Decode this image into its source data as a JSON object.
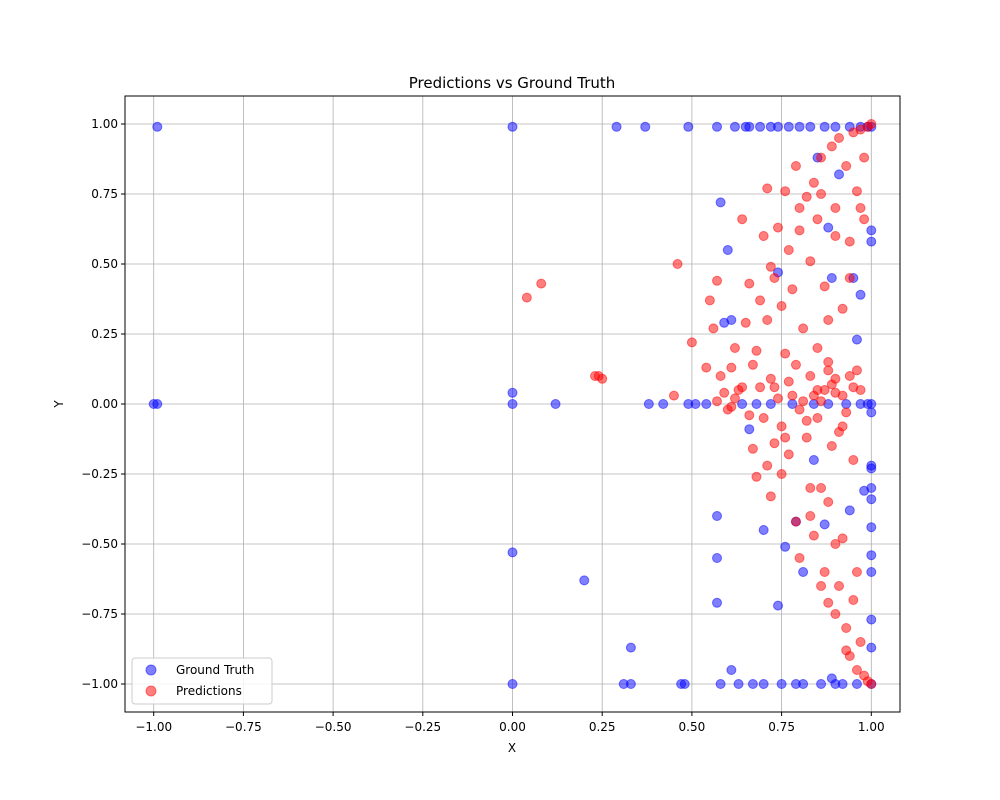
{
  "chart_data": {
    "type": "scatter",
    "title": "Predictions vs Ground Truth",
    "xlabel": "X",
    "ylabel": "Y",
    "xlim": [
      -1.08,
      1.08
    ],
    "ylim": [
      -1.1,
      1.1
    ],
    "xticks": [
      -1.0,
      -0.75,
      -0.5,
      -0.25,
      0.0,
      0.25,
      0.5,
      0.75,
      1.0
    ],
    "xtick_labels": [
      "−1.00",
      "−0.75",
      "−0.50",
      "−0.25",
      "0.00",
      "0.25",
      "0.50",
      "0.75",
      "1.00"
    ],
    "yticks": [
      -1.0,
      -0.75,
      -0.5,
      -0.25,
      0.0,
      0.25,
      0.5,
      0.75,
      1.0
    ],
    "ytick_labels": [
      "−1.00",
      "−0.75",
      "−0.50",
      "−0.25",
      "0.00",
      "0.25",
      "0.50",
      "0.75",
      "1.00"
    ],
    "grid": true,
    "legend_position": "lower-left",
    "series": [
      {
        "name": "Ground Truth",
        "color": "#0000ff",
        "points": [
          [
            -0.99,
            0.99
          ],
          [
            -1.0,
            0.0
          ],
          [
            -0.99,
            0.0
          ],
          [
            0.0,
            0.99
          ],
          [
            0.0,
            0.04
          ],
          [
            0.0,
            0.0
          ],
          [
            0.0,
            -0.53
          ],
          [
            0.0,
            -1.0
          ],
          [
            0.12,
            0.0
          ],
          [
            0.2,
            -0.63
          ],
          [
            0.29,
            0.99
          ],
          [
            0.31,
            -1.0
          ],
          [
            0.33,
            -0.87
          ],
          [
            0.33,
            -1.0
          ],
          [
            0.37,
            0.99
          ],
          [
            0.38,
            0.0
          ],
          [
            0.42,
            0.0
          ],
          [
            0.47,
            -1.0
          ],
          [
            0.48,
            -1.0
          ],
          [
            0.49,
            0.99
          ],
          [
            0.49,
            0.0
          ],
          [
            0.51,
            0.0
          ],
          [
            0.54,
            0.0
          ],
          [
            0.57,
            -0.4
          ],
          [
            0.57,
            -0.55
          ],
          [
            0.57,
            -0.71
          ],
          [
            0.57,
            0.99
          ],
          [
            0.58,
            0.72
          ],
          [
            0.58,
            -1.0
          ],
          [
            0.59,
            0.29
          ],
          [
            0.6,
            0.55
          ],
          [
            0.61,
            0.3
          ],
          [
            0.61,
            -0.95
          ],
          [
            0.62,
            0.99
          ],
          [
            0.63,
            -1.0
          ],
          [
            0.65,
            0.99
          ],
          [
            0.66,
            -0.09
          ],
          [
            0.67,
            -1.0
          ],
          [
            0.69,
            0.99
          ],
          [
            0.7,
            -0.45
          ],
          [
            0.72,
            0.99
          ],
          [
            0.74,
            0.47
          ],
          [
            0.74,
            -0.72
          ],
          [
            0.75,
            -1.0
          ],
          [
            0.76,
            -0.51
          ],
          [
            0.77,
            0.99
          ],
          [
            0.78,
            0.0
          ],
          [
            0.79,
            -0.42
          ],
          [
            0.8,
            0.99
          ],
          [
            0.81,
            -1.0
          ],
          [
            0.81,
            -0.6
          ],
          [
            0.83,
            0.99
          ],
          [
            0.84,
            -0.2
          ],
          [
            0.85,
            0.88
          ],
          [
            0.86,
            -1.0
          ],
          [
            0.87,
            -0.43
          ],
          [
            0.88,
            0.63
          ],
          [
            0.89,
            0.45
          ],
          [
            0.89,
            -0.98
          ],
          [
            0.9,
            0.99
          ],
          [
            0.91,
            0.82
          ],
          [
            0.92,
            -1.0
          ],
          [
            0.93,
            0.0
          ],
          [
            0.94,
            -0.38
          ],
          [
            0.95,
            0.45
          ],
          [
            0.96,
            0.23
          ],
          [
            0.97,
            0.99
          ],
          [
            0.97,
            0.39
          ],
          [
            0.98,
            -0.31
          ],
          [
            0.99,
            0.0
          ],
          [
            1.0,
            0.99
          ],
          [
            1.0,
            0.62
          ],
          [
            1.0,
            0.58
          ],
          [
            1.0,
            0.0
          ],
          [
            1.0,
            -0.03
          ],
          [
            1.0,
            -0.22
          ],
          [
            1.0,
            -0.23
          ],
          [
            1.0,
            -0.3
          ],
          [
            1.0,
            -0.34
          ],
          [
            1.0,
            -0.44
          ],
          [
            1.0,
            -0.54
          ],
          [
            1.0,
            -0.6
          ],
          [
            1.0,
            -0.77
          ],
          [
            1.0,
            -0.87
          ],
          [
            1.0,
            -1.0
          ],
          [
            0.64,
            0.0
          ],
          [
            0.68,
            0.0
          ],
          [
            0.72,
            0.0
          ],
          [
            0.84,
            0.0
          ],
          [
            0.88,
            0.0
          ],
          [
            0.97,
            0.0
          ],
          [
            0.66,
            0.99
          ],
          [
            0.74,
            0.99
          ],
          [
            0.87,
            0.99
          ],
          [
            0.94,
            0.99
          ],
          [
            0.99,
            0.99
          ],
          [
            0.7,
            -1.0
          ],
          [
            0.79,
            -1.0
          ],
          [
            0.9,
            -1.0
          ],
          [
            0.96,
            -1.0
          ]
        ]
      },
      {
        "name": "Predictions",
        "color": "#ff0000",
        "points": [
          [
            0.04,
            0.38
          ],
          [
            0.08,
            0.43
          ],
          [
            0.23,
            0.1
          ],
          [
            0.24,
            0.1
          ],
          [
            0.25,
            0.09
          ],
          [
            0.45,
            0.03
          ],
          [
            0.46,
            0.5
          ],
          [
            0.5,
            0.22
          ],
          [
            0.54,
            0.13
          ],
          [
            0.55,
            0.37
          ],
          [
            0.56,
            0.27
          ],
          [
            0.57,
            0.44
          ],
          [
            0.57,
            0.01
          ],
          [
            0.58,
            0.1
          ],
          [
            0.59,
            0.04
          ],
          [
            0.6,
            -0.02
          ],
          [
            0.61,
            0.13
          ],
          [
            0.62,
            0.2
          ],
          [
            0.63,
            0.05
          ],
          [
            0.64,
            0.66
          ],
          [
            0.65,
            0.29
          ],
          [
            0.66,
            0.43
          ],
          [
            0.67,
            -0.16
          ],
          [
            0.67,
            0.14
          ],
          [
            0.68,
            0.19
          ],
          [
            0.69,
            0.37
          ],
          [
            0.7,
            0.6
          ],
          [
            0.71,
            0.77
          ],
          [
            0.71,
            -0.22
          ],
          [
            0.72,
            0.49
          ],
          [
            0.72,
            -0.33
          ],
          [
            0.73,
            0.06
          ],
          [
            0.73,
            -0.14
          ],
          [
            0.74,
            0.63
          ],
          [
            0.75,
            0.35
          ],
          [
            0.75,
            -0.08
          ],
          [
            0.76,
            0.76
          ],
          [
            0.76,
            0.18
          ],
          [
            0.77,
            -0.18
          ],
          [
            0.78,
            0.41
          ],
          [
            0.78,
            0.03
          ],
          [
            0.79,
            0.85
          ],
          [
            0.79,
            -0.42
          ],
          [
            0.8,
            0.62
          ],
          [
            0.8,
            -0.55
          ],
          [
            0.81,
            0.27
          ],
          [
            0.81,
            0.01
          ],
          [
            0.82,
            -0.06
          ],
          [
            0.82,
            0.74
          ],
          [
            0.83,
            -0.3
          ],
          [
            0.83,
            0.51
          ],
          [
            0.84,
            0.79
          ],
          [
            0.84,
            -0.47
          ],
          [
            0.85,
            0.05
          ],
          [
            0.85,
            0.66
          ],
          [
            0.86,
            0.88
          ],
          [
            0.86,
            -0.3
          ],
          [
            0.87,
            -0.6
          ],
          [
            0.87,
            0.42
          ],
          [
            0.88,
            0.15
          ],
          [
            0.88,
            -0.71
          ],
          [
            0.89,
            0.92
          ],
          [
            0.89,
            -0.15
          ],
          [
            0.9,
            0.7
          ],
          [
            0.9,
            0.04
          ],
          [
            0.9,
            -0.5
          ],
          [
            0.91,
            0.95
          ],
          [
            0.91,
            -0.65
          ],
          [
            0.92,
            0.34
          ],
          [
            0.92,
            -0.08
          ],
          [
            0.93,
            0.85
          ],
          [
            0.93,
            -0.8
          ],
          [
            0.94,
            0.58
          ],
          [
            0.94,
            0.1
          ],
          [
            0.94,
            -0.9
          ],
          [
            0.95,
            0.97
          ],
          [
            0.95,
            -0.2
          ],
          [
            0.96,
            0.76
          ],
          [
            0.96,
            -0.95
          ],
          [
            0.97,
            0.05
          ],
          [
            0.97,
            0.98
          ],
          [
            0.98,
            -0.97
          ],
          [
            0.98,
            0.66
          ],
          [
            0.99,
            0.99
          ],
          [
            0.99,
            -0.99
          ],
          [
            1.0,
            1.0
          ],
          [
            1.0,
            -1.0
          ],
          [
            0.62,
            0.02
          ],
          [
            0.66,
            -0.04
          ],
          [
            0.69,
            0.06
          ],
          [
            0.74,
            0.02
          ],
          [
            0.77,
            0.08
          ],
          [
            0.8,
            -0.02
          ],
          [
            0.83,
            0.1
          ],
          [
            0.86,
            0.01
          ],
          [
            0.89,
            0.07
          ],
          [
            0.92,
            0.03
          ],
          [
            0.95,
            0.06
          ],
          [
            0.85,
            -0.05
          ],
          [
            0.88,
            0.12
          ],
          [
            0.91,
            -0.1
          ],
          [
            0.84,
            0.03
          ],
          [
            0.87,
            0.05
          ],
          [
            0.9,
            0.09
          ],
          [
            0.93,
            -0.03
          ],
          [
            0.96,
            0.12
          ],
          [
            0.79,
            0.14
          ],
          [
            0.82,
            -0.12
          ],
          [
            0.75,
            -0.25
          ],
          [
            0.71,
            0.3
          ],
          [
            0.68,
            -0.26
          ],
          [
            0.73,
            0.45
          ],
          [
            0.77,
            0.55
          ],
          [
            0.8,
            0.7
          ],
          [
            0.86,
            0.75
          ],
          [
            0.9,
            0.6
          ],
          [
            0.94,
            0.45
          ],
          [
            0.83,
            -0.4
          ],
          [
            0.88,
            -0.35
          ],
          [
            0.92,
            -0.48
          ],
          [
            0.95,
            -0.7
          ],
          [
            0.97,
            -0.85
          ],
          [
            0.86,
            -0.65
          ],
          [
            0.9,
            -0.75
          ],
          [
            0.93,
            -0.88
          ],
          [
            0.96,
            -0.6
          ],
          [
            0.98,
            0.88
          ],
          [
            0.97,
            0.7
          ],
          [
            0.85,
            0.2
          ],
          [
            0.88,
            0.3
          ],
          [
            0.76,
            -0.12
          ],
          [
            0.72,
            0.09
          ],
          [
            0.7,
            -0.05
          ],
          [
            0.64,
            0.06
          ],
          [
            0.61,
            -0.01
          ]
        ]
      }
    ]
  }
}
